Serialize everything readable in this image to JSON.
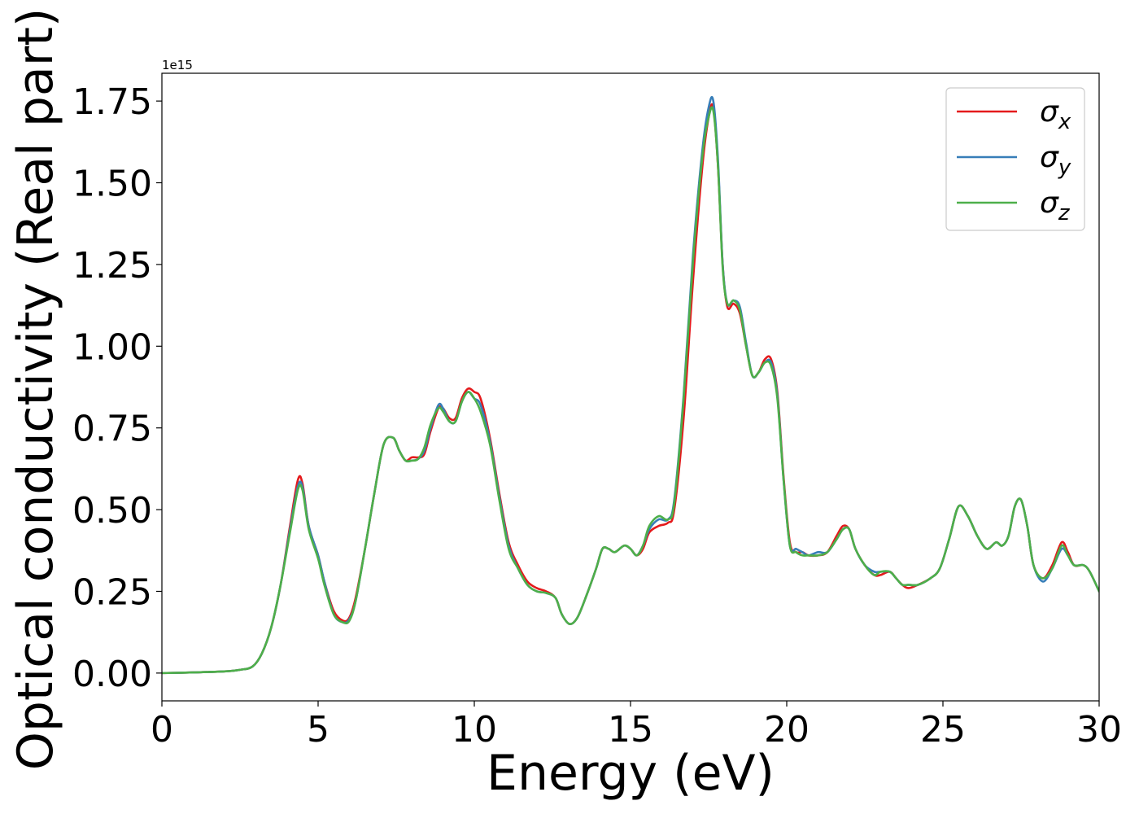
{
  "chart_data": {
    "type": "line",
    "xlabel": "Energy (eV)",
    "ylabel": "Optical conductivity (Real part)",
    "y_offset_label": "1e15",
    "xlim": [
      0,
      30
    ],
    "ylim": [
      -0.085,
      1.835
    ],
    "y_scale_factor": 1000000000000000.0,
    "x_ticks": [
      0,
      5,
      10,
      15,
      20,
      25,
      30
    ],
    "x_tick_labels": [
      "0",
      "5",
      "10",
      "15",
      "20",
      "25",
      "30"
    ],
    "y_ticks": [
      0.0,
      0.25,
      0.5,
      0.75,
      1.0,
      1.25,
      1.5,
      1.75
    ],
    "y_tick_labels": [
      "0.00",
      "0.25",
      "0.50",
      "0.75",
      "1.00",
      "1.25",
      "1.50",
      "1.75"
    ],
    "grid": false,
    "legend_position": "top-right",
    "series": [
      {
        "name": "σx",
        "symbol": "σ",
        "subscript": "x",
        "color": "#e41a1c",
        "x": [
          0,
          1,
          2,
          2.5,
          2.9,
          3.2,
          3.5,
          3.8,
          4.1,
          4.35,
          4.5,
          4.7,
          5.0,
          5.2,
          5.5,
          5.8,
          6.0,
          6.2,
          6.5,
          6.8,
          7.1,
          7.4,
          7.6,
          7.8,
          8.0,
          8.2,
          8.4,
          8.6,
          8.85,
          9.0,
          9.2,
          9.4,
          9.6,
          9.8,
          10.0,
          10.2,
          10.5,
          10.8,
          11.1,
          11.4,
          11.7,
          12.0,
          12.3,
          12.6,
          12.8,
          13.05,
          13.3,
          13.6,
          13.9,
          14.1,
          14.3,
          14.5,
          14.8,
          15.0,
          15.2,
          15.4,
          15.6,
          15.9,
          16.2,
          16.4,
          16.7,
          17.0,
          17.3,
          17.5,
          17.65,
          17.8,
          17.95,
          18.1,
          18.3,
          18.5,
          18.7,
          18.9,
          19.1,
          19.3,
          19.5,
          19.7,
          19.9,
          20.1,
          20.3,
          20.5,
          20.7,
          21.0,
          21.3,
          21.6,
          21.8,
          22.0,
          22.2,
          22.5,
          22.8,
          23.0,
          23.3,
          23.5,
          23.7,
          23.9,
          24.2,
          24.6,
          24.9,
          25.2,
          25.5,
          25.8,
          26.1,
          26.4,
          26.7,
          26.9,
          27.1,
          27.3,
          27.5,
          27.7,
          27.9,
          28.2,
          28.5,
          28.8,
          29.0,
          29.2,
          29.5,
          29.7,
          30.0
        ],
        "y": [
          0.0,
          0.002,
          0.005,
          0.01,
          0.02,
          0.06,
          0.14,
          0.27,
          0.45,
          0.59,
          0.58,
          0.45,
          0.36,
          0.28,
          0.19,
          0.16,
          0.17,
          0.23,
          0.38,
          0.55,
          0.7,
          0.72,
          0.68,
          0.65,
          0.66,
          0.66,
          0.67,
          0.74,
          0.81,
          0.81,
          0.78,
          0.78,
          0.84,
          0.87,
          0.86,
          0.84,
          0.72,
          0.55,
          0.4,
          0.33,
          0.28,
          0.26,
          0.25,
          0.23,
          0.18,
          0.15,
          0.17,
          0.24,
          0.32,
          0.38,
          0.38,
          0.37,
          0.39,
          0.38,
          0.36,
          0.38,
          0.43,
          0.45,
          0.46,
          0.5,
          0.78,
          1.2,
          1.55,
          1.7,
          1.73,
          1.55,
          1.25,
          1.12,
          1.13,
          1.1,
          1.0,
          0.91,
          0.92,
          0.96,
          0.96,
          0.86,
          0.6,
          0.4,
          0.37,
          0.37,
          0.36,
          0.36,
          0.37,
          0.42,
          0.45,
          0.44,
          0.38,
          0.33,
          0.3,
          0.3,
          0.31,
          0.29,
          0.27,
          0.26,
          0.27,
          0.29,
          0.32,
          0.41,
          0.51,
          0.48,
          0.42,
          0.38,
          0.4,
          0.39,
          0.42,
          0.51,
          0.53,
          0.45,
          0.33,
          0.29,
          0.33,
          0.4,
          0.37,
          0.33,
          0.33,
          0.31,
          0.25
        ]
      },
      {
        "name": "σy",
        "symbol": "σ",
        "subscript": "y",
        "color": "#377eb8",
        "x": [
          0,
          1,
          2,
          2.5,
          2.9,
          3.2,
          3.5,
          3.8,
          4.1,
          4.35,
          4.5,
          4.7,
          5.0,
          5.2,
          5.5,
          5.8,
          6.0,
          6.2,
          6.5,
          6.8,
          7.1,
          7.4,
          7.6,
          7.8,
          8.0,
          8.2,
          8.4,
          8.6,
          8.85,
          9.0,
          9.2,
          9.4,
          9.6,
          9.8,
          10.0,
          10.2,
          10.5,
          10.8,
          11.1,
          11.4,
          11.7,
          12.0,
          12.3,
          12.6,
          12.8,
          13.05,
          13.3,
          13.6,
          13.9,
          14.1,
          14.3,
          14.5,
          14.8,
          15.0,
          15.2,
          15.4,
          15.6,
          15.9,
          16.2,
          16.4,
          16.7,
          17.0,
          17.3,
          17.5,
          17.65,
          17.8,
          17.95,
          18.1,
          18.3,
          18.5,
          18.7,
          18.9,
          19.1,
          19.3,
          19.5,
          19.7,
          19.9,
          20.1,
          20.3,
          20.5,
          20.7,
          21.0,
          21.3,
          21.6,
          21.8,
          22.0,
          22.2,
          22.5,
          22.8,
          23.0,
          23.3,
          23.5,
          23.7,
          23.9,
          24.2,
          24.6,
          24.9,
          25.2,
          25.5,
          25.8,
          26.1,
          26.4,
          26.7,
          26.9,
          27.1,
          27.3,
          27.5,
          27.7,
          27.9,
          28.2,
          28.5,
          28.8,
          29.0,
          29.2,
          29.5,
          29.7,
          30.0
        ],
        "y": [
          0.0,
          0.002,
          0.005,
          0.01,
          0.02,
          0.06,
          0.14,
          0.27,
          0.44,
          0.57,
          0.57,
          0.45,
          0.36,
          0.28,
          0.18,
          0.155,
          0.165,
          0.22,
          0.38,
          0.55,
          0.7,
          0.72,
          0.68,
          0.65,
          0.65,
          0.655,
          0.68,
          0.75,
          0.82,
          0.81,
          0.77,
          0.77,
          0.83,
          0.86,
          0.84,
          0.82,
          0.71,
          0.54,
          0.39,
          0.32,
          0.27,
          0.25,
          0.245,
          0.23,
          0.18,
          0.15,
          0.17,
          0.24,
          0.32,
          0.38,
          0.38,
          0.37,
          0.39,
          0.38,
          0.36,
          0.39,
          0.44,
          0.47,
          0.47,
          0.53,
          0.85,
          1.28,
          1.6,
          1.73,
          1.75,
          1.57,
          1.25,
          1.13,
          1.14,
          1.12,
          1.01,
          0.91,
          0.92,
          0.95,
          0.95,
          0.85,
          0.59,
          0.39,
          0.38,
          0.37,
          0.36,
          0.37,
          0.37,
          0.41,
          0.44,
          0.44,
          0.38,
          0.33,
          0.31,
          0.31,
          0.31,
          0.29,
          0.27,
          0.27,
          0.27,
          0.29,
          0.32,
          0.41,
          0.51,
          0.48,
          0.42,
          0.38,
          0.4,
          0.39,
          0.42,
          0.51,
          0.53,
          0.45,
          0.33,
          0.28,
          0.32,
          0.38,
          0.36,
          0.33,
          0.33,
          0.31,
          0.25
        ]
      },
      {
        "name": "σz",
        "symbol": "σ",
        "subscript": "z",
        "color": "#4daf4a",
        "x": [
          0,
          1,
          2,
          2.5,
          2.9,
          3.2,
          3.5,
          3.8,
          4.1,
          4.35,
          4.5,
          4.7,
          5.0,
          5.2,
          5.5,
          5.8,
          6.0,
          6.2,
          6.5,
          6.8,
          7.1,
          7.4,
          7.6,
          7.8,
          8.0,
          8.2,
          8.4,
          8.6,
          8.85,
          9.0,
          9.2,
          9.4,
          9.6,
          9.8,
          10.0,
          10.2,
          10.5,
          10.8,
          11.1,
          11.4,
          11.7,
          12.0,
          12.3,
          12.6,
          12.8,
          13.05,
          13.3,
          13.6,
          13.9,
          14.1,
          14.3,
          14.5,
          14.8,
          15.0,
          15.2,
          15.4,
          15.6,
          15.9,
          16.2,
          16.4,
          16.7,
          17.0,
          17.3,
          17.5,
          17.65,
          17.8,
          17.95,
          18.1,
          18.3,
          18.5,
          18.7,
          18.9,
          19.1,
          19.3,
          19.5,
          19.7,
          19.9,
          20.1,
          20.3,
          20.5,
          20.7,
          21.0,
          21.3,
          21.6,
          21.8,
          22.0,
          22.2,
          22.5,
          22.8,
          23.0,
          23.3,
          23.5,
          23.7,
          23.9,
          24.2,
          24.6,
          24.9,
          25.2,
          25.5,
          25.8,
          26.1,
          26.4,
          26.7,
          26.9,
          27.1,
          27.3,
          27.5,
          27.7,
          27.9,
          28.2,
          28.5,
          28.8,
          29.0,
          29.2,
          29.5,
          29.7,
          30.0
        ],
        "y": [
          0.0,
          0.002,
          0.005,
          0.01,
          0.02,
          0.06,
          0.14,
          0.27,
          0.43,
          0.56,
          0.56,
          0.44,
          0.35,
          0.27,
          0.18,
          0.155,
          0.16,
          0.22,
          0.38,
          0.55,
          0.7,
          0.72,
          0.68,
          0.65,
          0.65,
          0.655,
          0.69,
          0.76,
          0.81,
          0.8,
          0.77,
          0.77,
          0.83,
          0.86,
          0.84,
          0.8,
          0.7,
          0.53,
          0.38,
          0.32,
          0.27,
          0.25,
          0.245,
          0.23,
          0.18,
          0.15,
          0.17,
          0.24,
          0.32,
          0.38,
          0.38,
          0.37,
          0.39,
          0.38,
          0.36,
          0.39,
          0.45,
          0.48,
          0.47,
          0.52,
          0.84,
          1.26,
          1.58,
          1.7,
          1.72,
          1.55,
          1.24,
          1.13,
          1.14,
          1.11,
          1.0,
          0.91,
          0.92,
          0.95,
          0.94,
          0.84,
          0.59,
          0.39,
          0.37,
          0.36,
          0.36,
          0.36,
          0.37,
          0.41,
          0.44,
          0.44,
          0.38,
          0.33,
          0.3,
          0.31,
          0.31,
          0.29,
          0.27,
          0.27,
          0.27,
          0.29,
          0.32,
          0.41,
          0.51,
          0.48,
          0.42,
          0.38,
          0.4,
          0.39,
          0.42,
          0.51,
          0.53,
          0.45,
          0.33,
          0.29,
          0.32,
          0.39,
          0.36,
          0.33,
          0.33,
          0.31,
          0.25
        ]
      }
    ]
  }
}
